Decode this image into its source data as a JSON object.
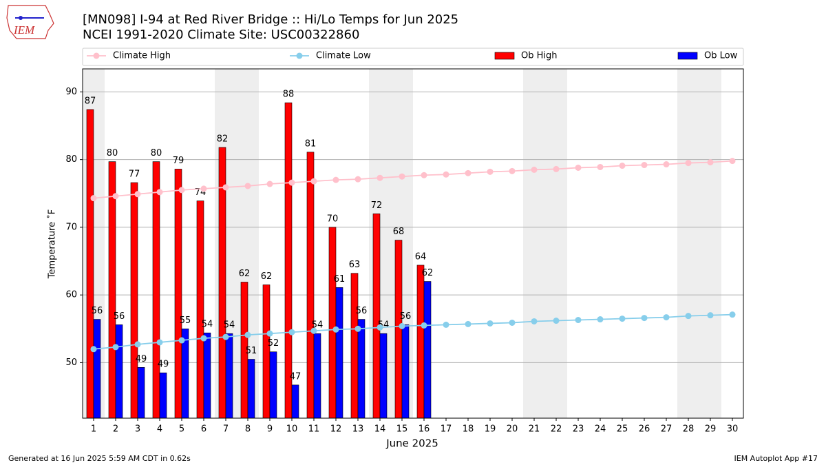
{
  "logo": "IEM",
  "chart_data": {
    "type": "bar",
    "title": "[MN098] I-94 at Red River Bridge :: Hi/Lo Temps for Jun 2025",
    "subtitle": "NCEI 1991-2020 Climate Site: USC00322860",
    "xlabel": "June 2025",
    "ylabel": "Temperature ˚F",
    "categories": [
      "1",
      "2",
      "3",
      "4",
      "5",
      "6",
      "7",
      "8",
      "9",
      "10",
      "11",
      "12",
      "13",
      "14",
      "15",
      "16",
      "17",
      "18",
      "19",
      "20",
      "21",
      "22",
      "23",
      "24",
      "25",
      "26",
      "27",
      "28",
      "29",
      "30"
    ],
    "shaded_days": [
      1,
      7,
      8,
      14,
      15,
      21,
      22,
      28,
      29
    ],
    "ylim": [
      41.8,
      93.4
    ],
    "yticks": [
      50,
      60,
      70,
      80,
      90
    ],
    "grid": true,
    "legend": "top",
    "series": [
      {
        "name": "Climate High",
        "type": "line",
        "color": "#ffc0cb",
        "values": [
          74.3,
          74.6,
          74.9,
          75.2,
          75.5,
          75.7,
          75.9,
          76.1,
          76.4,
          76.6,
          76.8,
          77.0,
          77.1,
          77.3,
          77.5,
          77.7,
          77.8,
          78.0,
          78.2,
          78.3,
          78.5,
          78.6,
          78.8,
          78.9,
          79.1,
          79.2,
          79.3,
          79.5,
          79.6,
          79.8
        ]
      },
      {
        "name": "Climate Low",
        "type": "line",
        "color": "#87ceeb",
        "values": [
          52.0,
          52.3,
          52.7,
          53.0,
          53.3,
          53.6,
          53.8,
          54.1,
          54.3,
          54.5,
          54.7,
          54.9,
          55.0,
          55.2,
          55.4,
          55.5,
          55.6,
          55.7,
          55.8,
          55.9,
          56.1,
          56.2,
          56.3,
          56.4,
          56.5,
          56.6,
          56.7,
          56.9,
          57.0,
          57.1
        ]
      },
      {
        "name": "Ob High",
        "type": "bar",
        "color": "#ff0000",
        "values": [
          87.4,
          79.7,
          76.6,
          79.7,
          78.6,
          73.9,
          81.8,
          61.9,
          61.5,
          88.4,
          81.1,
          70.0,
          63.2,
          72.0,
          68.1,
          64.4,
          null,
          null,
          null,
          null,
          null,
          null,
          null,
          null,
          null,
          null,
          null,
          null,
          null,
          null
        ],
        "value_labels": [
          "87",
          "80",
          "77",
          "80",
          "79",
          "74",
          "82",
          "62",
          "62",
          "88",
          "81",
          "70",
          "63",
          "72",
          "68",
          "64",
          null,
          null,
          null,
          null,
          null,
          null,
          null,
          null,
          null,
          null,
          null,
          null,
          null,
          null
        ]
      },
      {
        "name": "Ob Low",
        "type": "bar",
        "color": "#0000ff",
        "values": [
          56.4,
          55.6,
          49.3,
          48.5,
          55.0,
          54.4,
          54.3,
          50.5,
          51.6,
          46.7,
          54.3,
          61.1,
          56.4,
          54.3,
          55.6,
          62.0,
          null,
          null,
          null,
          null,
          null,
          null,
          null,
          null,
          null,
          null,
          null,
          null,
          null,
          null
        ],
        "value_labels": [
          "56",
          "56",
          "49",
          "49",
          "55",
          "54",
          "54",
          "51",
          "52",
          "47",
          "54",
          "61",
          "56",
          "54",
          "56",
          "62",
          null,
          null,
          null,
          null,
          null,
          null,
          null,
          null,
          null,
          null,
          null,
          null,
          null,
          null
        ]
      }
    ]
  },
  "footer": {
    "left": "Generated at 16 Jun 2025 5:59 AM CDT in 0.62s",
    "right": "IEM Autoplot App #17"
  }
}
